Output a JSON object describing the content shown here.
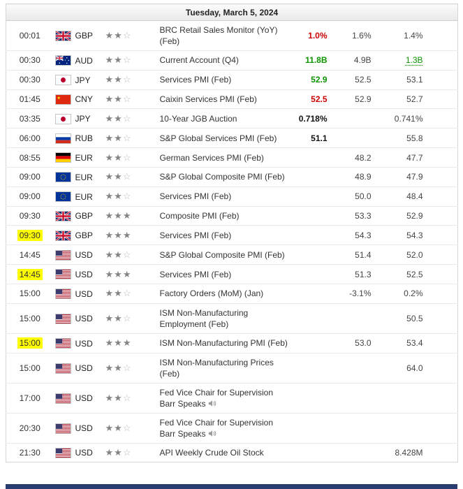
{
  "page": {
    "date_header": "Tuesday, March 5, 2024"
  },
  "colors": {
    "positive": "#0c9300",
    "negative": "#cc0202",
    "time_highlight": "#ffff00",
    "next_day_bar": "#283c72"
  },
  "rows": [
    {
      "time": "00:01",
      "highlighted": false,
      "flag": "uk",
      "currency": "GBP",
      "stars": 2,
      "event": "BRC Retail Sales Monitor (YoY) (Feb)",
      "actual": "1.0%",
      "actual_color": "negative",
      "forecast": "1.6%",
      "previous": "1.4%"
    },
    {
      "time": "00:30",
      "highlighted": false,
      "flag": "australia",
      "currency": "AUD",
      "stars": 2,
      "event": "Current Account (Q4)",
      "actual": "11.8B",
      "actual_color": "positive",
      "forecast": "4.9B",
      "previous": "1.3B",
      "previous_color": "positive",
      "previous_revised": true
    },
    {
      "time": "00:30",
      "highlighted": false,
      "flag": "japan",
      "currency": "JPY",
      "stars": 2,
      "event": "Services PMI (Feb)",
      "actual": "52.9",
      "actual_color": "positive",
      "forecast": "52.5",
      "previous": "53.1"
    },
    {
      "time": "01:45",
      "highlighted": false,
      "flag": "china",
      "currency": "CNY",
      "stars": 2,
      "event": "Caixin Services PMI (Feb)",
      "actual": "52.5",
      "actual_color": "negative",
      "forecast": "52.9",
      "previous": "52.7"
    },
    {
      "time": "03:35",
      "highlighted": false,
      "flag": "japan",
      "currency": "JPY",
      "stars": 2,
      "event": "10-Year JGB Auction",
      "actual": "0.718%",
      "actual_color": "neutral",
      "forecast": "",
      "previous": "0.741%"
    },
    {
      "time": "06:00",
      "highlighted": false,
      "flag": "russia",
      "currency": "RUB",
      "stars": 2,
      "event": "S&P Global Services PMI (Feb)",
      "actual": "51.1",
      "actual_color": "neutral",
      "forecast": "",
      "previous": "55.8"
    },
    {
      "time": "08:55",
      "highlighted": false,
      "flag": "germany",
      "currency": "EUR",
      "stars": 2,
      "event": "German Services PMI (Feb)",
      "actual": "",
      "forecast": "48.2",
      "previous": "47.7"
    },
    {
      "time": "09:00",
      "highlighted": false,
      "flag": "eu",
      "currency": "EUR",
      "stars": 2,
      "event": "S&P Global Composite PMI (Feb)",
      "actual": "",
      "forecast": "48.9",
      "previous": "47.9"
    },
    {
      "time": "09:00",
      "highlighted": false,
      "flag": "eu",
      "currency": "EUR",
      "stars": 2,
      "event": "Services PMI (Feb)",
      "actual": "",
      "forecast": "50.0",
      "previous": "48.4"
    },
    {
      "time": "09:30",
      "highlighted": false,
      "flag": "uk",
      "currency": "GBP",
      "stars": 3,
      "event": "Composite PMI (Feb)",
      "actual": "",
      "forecast": "53.3",
      "previous": "52.9"
    },
    {
      "time": "09:30",
      "highlighted": true,
      "flag": "uk",
      "currency": "GBP",
      "stars": 3,
      "event": "Services PMI (Feb)",
      "actual": "",
      "forecast": "54.3",
      "previous": "54.3"
    },
    {
      "time": "14:45",
      "highlighted": false,
      "flag": "us",
      "currency": "USD",
      "stars": 2,
      "event": "S&P Global Composite PMI (Feb)",
      "actual": "",
      "forecast": "51.4",
      "previous": "52.0"
    },
    {
      "time": "14:45",
      "highlighted": true,
      "flag": "us",
      "currency": "USD",
      "stars": 3,
      "event": "Services PMI (Feb)",
      "actual": "",
      "forecast": "51.3",
      "previous": "52.5"
    },
    {
      "time": "15:00",
      "highlighted": false,
      "flag": "us",
      "currency": "USD",
      "stars": 2,
      "event": "Factory Orders (MoM) (Jan)",
      "actual": "",
      "forecast": "-3.1%",
      "previous": "0.2%"
    },
    {
      "time": "15:00",
      "highlighted": false,
      "flag": "us",
      "currency": "USD",
      "stars": 2,
      "event": "ISM Non-Manufacturing Employment (Feb)",
      "actual": "",
      "forecast": "",
      "previous": "50.5"
    },
    {
      "time": "15:00",
      "highlighted": true,
      "flag": "us",
      "currency": "USD",
      "stars": 3,
      "event": "ISM Non-Manufacturing PMI (Feb)",
      "actual": "",
      "forecast": "53.0",
      "previous": "53.4"
    },
    {
      "time": "15:00",
      "highlighted": false,
      "flag": "us",
      "currency": "USD",
      "stars": 2,
      "event": "ISM Non-Manufacturing Prices (Feb)",
      "actual": "",
      "forecast": "",
      "previous": "64.0"
    },
    {
      "time": "17:00",
      "highlighted": false,
      "flag": "us",
      "currency": "USD",
      "stars": 2,
      "event": "Fed Vice Chair for Supervision Barr Speaks",
      "speech": true,
      "actual": "",
      "forecast": "",
      "previous": ""
    },
    {
      "time": "20:30",
      "highlighted": false,
      "flag": "us",
      "currency": "USD",
      "stars": 2,
      "event": "Fed Vice Chair for Supervision Barr Speaks",
      "speech": true,
      "actual": "",
      "forecast": "",
      "previous": ""
    },
    {
      "time": "21:30",
      "highlighted": false,
      "flag": "us",
      "currency": "USD",
      "stars": 2,
      "event": "API Weekly Crude Oil Stock",
      "actual": "",
      "forecast": "",
      "previous": "8.428M"
    }
  ]
}
